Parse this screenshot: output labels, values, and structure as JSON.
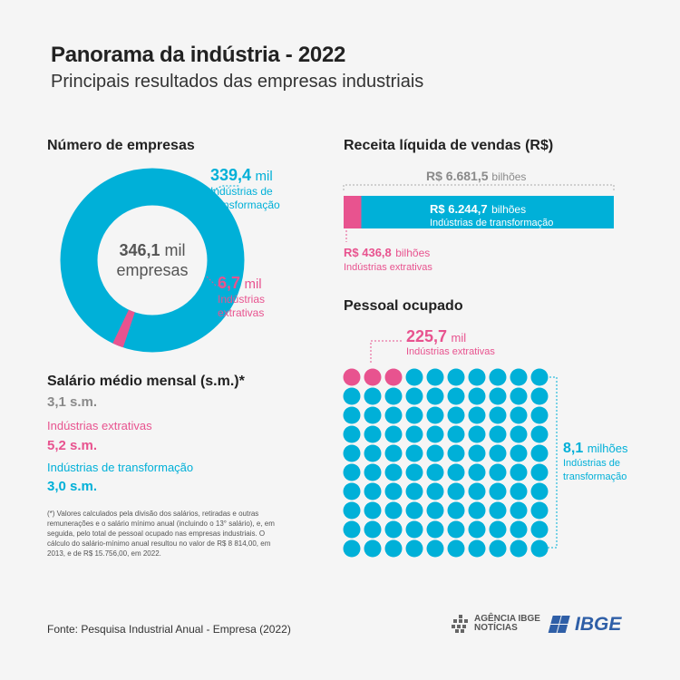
{
  "header": {
    "title": "Panorama da indústria - 2022",
    "subtitle": "Principais resultados das empresas industriais"
  },
  "colors": {
    "transformacao": "#00b0d8",
    "extrativas": "#e8538f",
    "total": "#8a8a8a"
  },
  "empresas": {
    "title": "Número de empresas",
    "total_value": "346,1",
    "total_unit": "mil",
    "total_label": "empresas",
    "transformacao_value": "339,4",
    "transformacao_unit": "mil",
    "transformacao_label_1": "Indústrias de",
    "transformacao_label_2": "transformação",
    "extrativas_value": "6,7",
    "extrativas_unit": "mil",
    "extrativas_label_1": "Indústrias",
    "extrativas_label_2": "extrativas"
  },
  "salario": {
    "title": "Salário médio mensal (s.m.)*",
    "total": "3,1 s.m.",
    "extrativas_label": "Indústrias extrativas",
    "extrativas_value": "5,2 s.m.",
    "transformacao_label": "Indústrias de transformação",
    "transformacao_value": "3,0 s.m."
  },
  "note": "(*) Valores calculados pela divisão dos salários, retiradas e outras remunerações e o salário mínimo anual (incluindo o 13° salário), e, em seguida, pelo total de pessoal ocupado nas empresas industriais. O cálculo do salário-mínimo anual resultou no valor de R$ 8 814,00, em 2013, e de R$ 15.756,00, em 2022.",
  "receita": {
    "title": "Receita líquida de vendas (R$)",
    "total_value": "R$ 6.681,5",
    "total_unit": "bilhões",
    "transformacao_value": "R$ 6.244,7",
    "transformacao_unit": "bilhões",
    "transformacao_label": "Indústrias de transformação",
    "extrativas_value": "R$ 436,8",
    "extrativas_unit": "bilhões",
    "extrativas_label": "Indústrias extrativas"
  },
  "pessoal": {
    "title": "Pessoal ocupado",
    "extrativas_value": "225,7",
    "extrativas_unit": "mil",
    "extrativas_label": "Indústrias extrativas",
    "transformacao_value": "8,1",
    "transformacao_unit": "milhões",
    "transformacao_label_1": "Indústrias de",
    "transformacao_label_2": "transformação"
  },
  "footer": {
    "source": "Fonte: Pesquisa Industrial Anual - Empresa (2022)",
    "agencia_logo": "AGÊNCIA IBGE NOTÍCIAS",
    "ibge_logo": "IBGE"
  },
  "chart_data": [
    {
      "type": "pie",
      "title": "Número de empresas",
      "unit": "mil",
      "labels": [
        "Indústrias de transformação",
        "Indústrias extrativas"
      ],
      "values": [
        339.4,
        6.7
      ],
      "total": 346.1
    },
    {
      "type": "bar",
      "title": "Receita líquida de vendas (R$)",
      "unit": "bilhões",
      "categories": [
        "Indústrias extrativas",
        "Indústrias de transformação"
      ],
      "values": [
        436.8,
        6244.7
      ],
      "total": 6681.5,
      "stacked": true
    },
    {
      "type": "scatter",
      "title": "Pessoal ocupado",
      "unit_description": "dot grid, 100 dots",
      "grid": {
        "cols": 10,
        "rows": 10
      },
      "series": [
        {
          "name": "Indústrias extrativas",
          "dots": 3,
          "value": 225.7,
          "unit": "mil"
        },
        {
          "name": "Indústrias de transformação",
          "dots": 97,
          "value": 8.1,
          "unit": "milhões"
        }
      ]
    }
  ]
}
